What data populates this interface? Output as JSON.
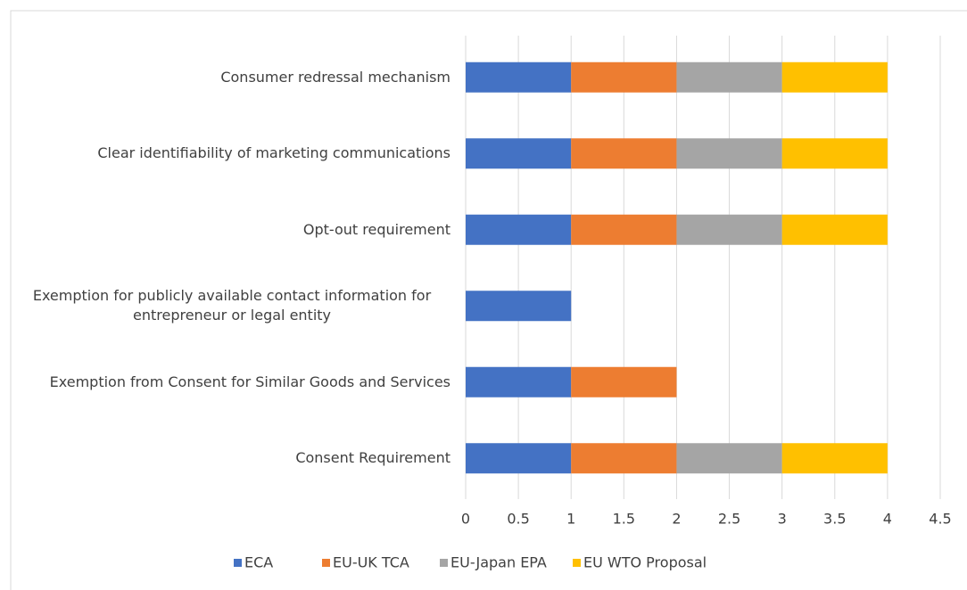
{
  "chart_data": {
    "type": "bar",
    "orientation": "horizontal",
    "stacked": true,
    "categories": [
      "Consumer redressal mechanism",
      "Clear identifiability of marketing communications",
      "Opt-out requirement",
      "Exemption for publicly available contact information for entrepreneur or legal entity",
      "Exemption from Consent for Similar Goods and Services",
      "Consent Requirement"
    ],
    "series": [
      {
        "name": "ECA",
        "color": "#4472c4",
        "values": [
          1,
          1,
          1,
          1,
          1,
          1
        ]
      },
      {
        "name": "EU-UK TCA",
        "color": "#ed7d31",
        "values": [
          1,
          1,
          1,
          0,
          1,
          1
        ]
      },
      {
        "name": "EU-Japan EPA",
        "color": "#a5a5a5",
        "values": [
          1,
          1,
          1,
          0,
          0,
          1
        ]
      },
      {
        "name": "EU WTO Proposal",
        "color": "#ffc000",
        "values": [
          1,
          1,
          1,
          0,
          0,
          1
        ]
      }
    ],
    "xlim": [
      0,
      4.5
    ],
    "xticks": [
      0,
      0.5,
      1,
      1.5,
      2,
      2.5,
      3,
      3.5,
      4,
      4.5
    ],
    "grid": true,
    "legend": "bottom"
  }
}
